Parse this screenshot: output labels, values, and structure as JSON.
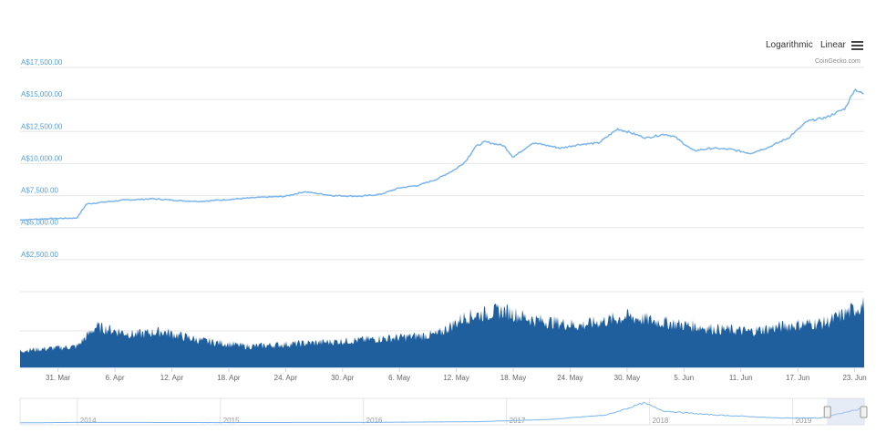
{
  "toolbar": {
    "logarithmic_label": "Logarithmic",
    "linear_label": "Linear",
    "menu_icon": "hamburger-menu-icon",
    "credit": "CoinGecko.com"
  },
  "colors": {
    "price_line": "#7cb5ec",
    "volume_fill": "#1f5f9e",
    "grid": "#e6e6e6",
    "axis_label": "#5aa0d8",
    "tick_label": "#666666",
    "navigator_mask": "#c5d4ec"
  },
  "chart_data": {
    "type": "line",
    "title": "",
    "currency_prefix": "A$",
    "y_axis": {
      "ylim": [
        0,
        17500
      ],
      "ticks": [
        2500,
        5000,
        7500,
        10000,
        12500,
        15000,
        17500
      ],
      "tick_labels": [
        "A$2,500.00",
        "A$5,000.00",
        "A$7,500.00",
        "A$10,000.00",
        "A$12,500.00",
        "A$15,000.00",
        "A$17,500.00"
      ]
    },
    "x_axis": {
      "range": [
        "2019-03-27",
        "2019-06-24"
      ],
      "tick_dates": [
        "2019-03-31",
        "2019-04-06",
        "2019-04-12",
        "2019-04-18",
        "2019-04-24",
        "2019-04-30",
        "2019-05-06",
        "2019-05-12",
        "2019-05-18",
        "2019-05-24",
        "2019-05-30",
        "2019-06-05",
        "2019-06-11",
        "2019-06-17",
        "2019-06-23"
      ],
      "tick_labels": [
        "31. Mar",
        "6. Apr",
        "12. Apr",
        "18. Apr",
        "24. Apr",
        "30. Apr",
        "6. May",
        "12. May",
        "18. May",
        "24. May",
        "30. May",
        "5. Jun",
        "11. Jun",
        "17. Jun",
        "23. Jun"
      ]
    },
    "series": [
      {
        "values_kind": "price",
        "x": [
          "2019-03-27",
          "2019-03-30",
          "2019-04-02",
          "2019-04-03",
          "2019-04-05",
          "2019-04-07",
          "2019-04-10",
          "2019-04-13",
          "2019-04-15",
          "2019-04-18",
          "2019-04-21",
          "2019-04-24",
          "2019-04-26",
          "2019-04-29",
          "2019-05-02",
          "2019-05-04",
          "2019-05-06",
          "2019-05-08",
          "2019-05-10",
          "2019-05-12",
          "2019-05-13",
          "2019-05-14",
          "2019-05-15",
          "2019-05-17",
          "2019-05-18",
          "2019-05-20",
          "2019-05-21",
          "2019-05-23",
          "2019-05-25",
          "2019-05-27",
          "2019-05-29",
          "2019-05-30",
          "2019-06-01",
          "2019-06-03",
          "2019-06-04",
          "2019-06-06",
          "2019-06-08",
          "2019-06-10",
          "2019-06-12",
          "2019-06-14",
          "2019-06-16",
          "2019-06-18",
          "2019-06-20",
          "2019-06-22",
          "2019-06-23",
          "2019-06-24"
        ],
        "y": [
          5600,
          5700,
          5750,
          6850,
          7000,
          7150,
          7250,
          7100,
          7050,
          7200,
          7350,
          7450,
          7800,
          7500,
          7450,
          7600,
          8100,
          8300,
          8800,
          9600,
          10200,
          11300,
          11700,
          11400,
          10500,
          11600,
          11500,
          11200,
          11500,
          11600,
          12700,
          12500,
          12000,
          12300,
          12100,
          11000,
          11200,
          11100,
          10800,
          11300,
          12000,
          13300,
          13600,
          14300,
          15800,
          15400
        ]
      },
      {
        "values_kind": "volume",
        "x": [
          "2019-03-27",
          "2019-04-02",
          "2019-04-04",
          "2019-04-08",
          "2019-04-11",
          "2019-04-15",
          "2019-04-20",
          "2019-04-28",
          "2019-05-06",
          "2019-05-10",
          "2019-05-13",
          "2019-05-17",
          "2019-05-20",
          "2019-05-25",
          "2019-05-30",
          "2019-06-03",
          "2019-06-08",
          "2019-06-12",
          "2019-06-16",
          "2019-06-20",
          "2019-06-24"
        ],
        "y": [
          0.28,
          0.35,
          0.68,
          0.55,
          0.6,
          0.45,
          0.35,
          0.42,
          0.5,
          0.55,
          0.85,
          0.95,
          0.8,
          0.7,
          0.85,
          0.75,
          0.65,
          0.6,
          0.7,
          0.75,
          1.05
        ]
      }
    ],
    "navigator": {
      "year_labels": [
        "2014",
        "2015",
        "2016",
        "2017",
        "2018",
        "2019"
      ],
      "x": [
        2013.6,
        2014.0,
        2015.0,
        2016.0,
        2016.8,
        2017.3,
        2017.7,
        2017.96,
        2018.1,
        2018.4,
        2018.9,
        2019.2,
        2019.5
      ],
      "y": [
        120,
        600,
        400,
        600,
        1300,
        3500,
        8000,
        20000,
        12000,
        8500,
        5000,
        5000,
        15000
      ]
    }
  }
}
